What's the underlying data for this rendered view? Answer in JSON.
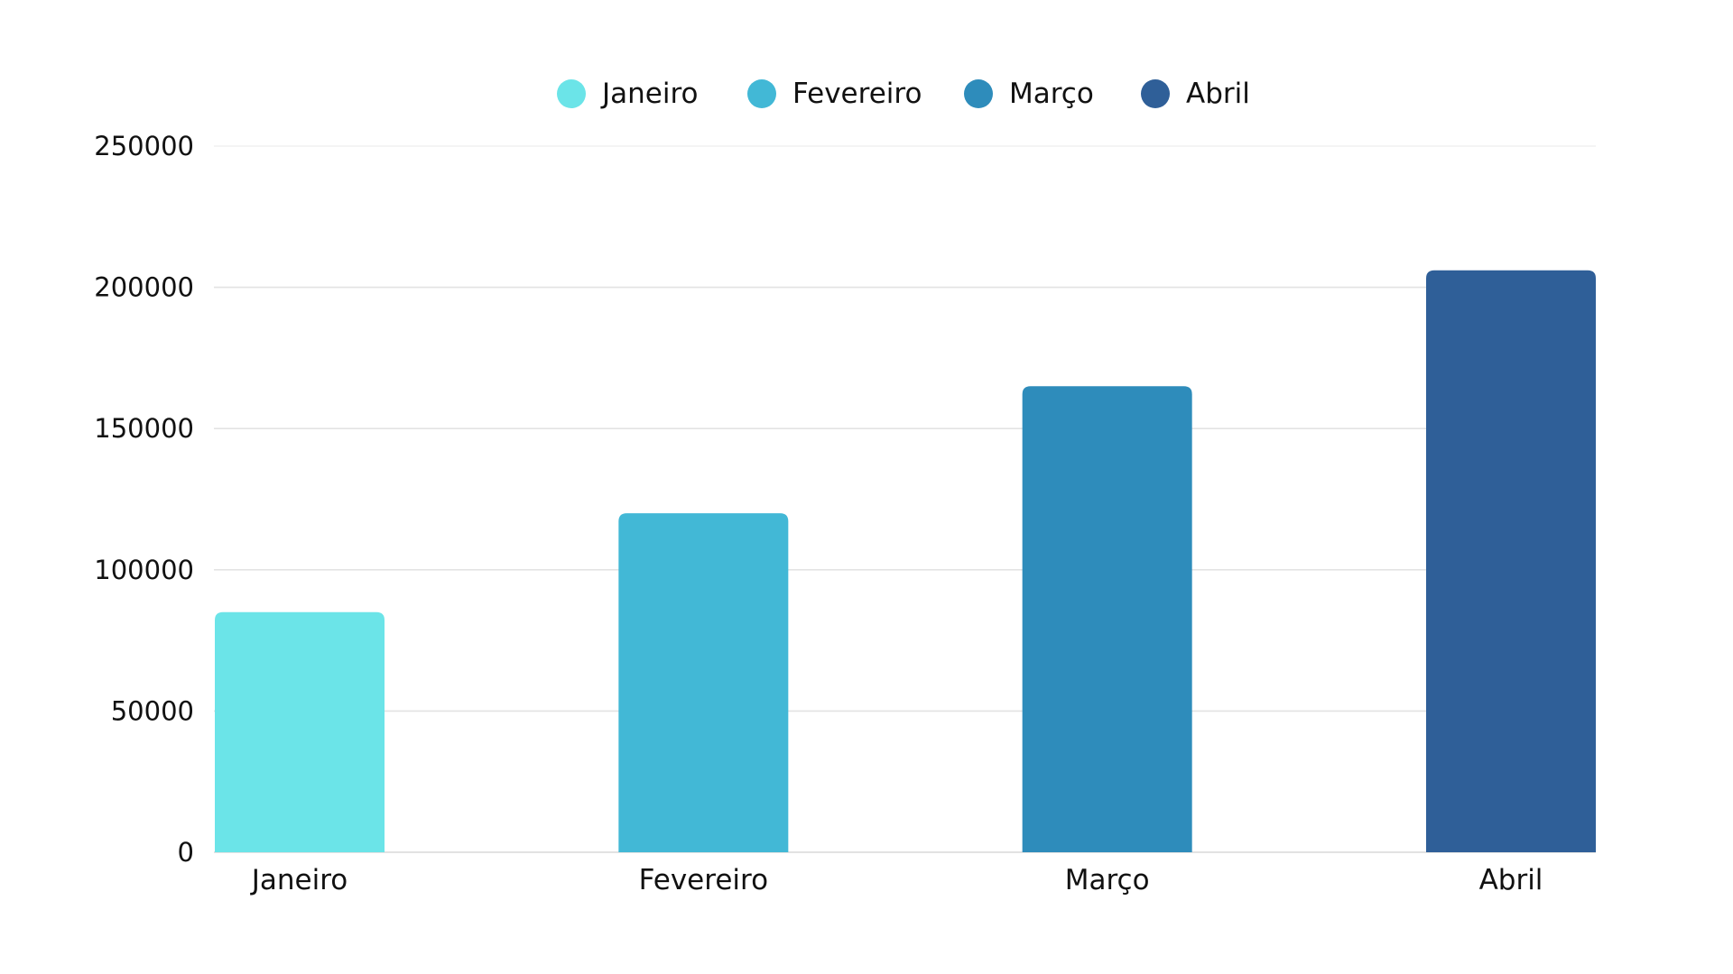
{
  "chart_data": {
    "type": "bar",
    "title": "",
    "xlabel": "",
    "ylabel": "",
    "categories": [
      "Janeiro",
      "Fevereiro",
      "Março",
      "Abril"
    ],
    "values": [
      85000,
      120000,
      165000,
      206000
    ],
    "colors": [
      "#6BE4E8",
      "#42B8D6",
      "#2E8CBB",
      "#2F5F98"
    ],
    "ylim": [
      0,
      250000
    ],
    "yticks": [
      "0",
      "50000",
      "100000",
      "150000",
      "200000",
      "250000"
    ],
    "grid": true,
    "legend": {
      "placement": "top-center",
      "entries": [
        "Janeiro",
        "Fevereiro",
        "Março",
        "Abril"
      ]
    }
  }
}
